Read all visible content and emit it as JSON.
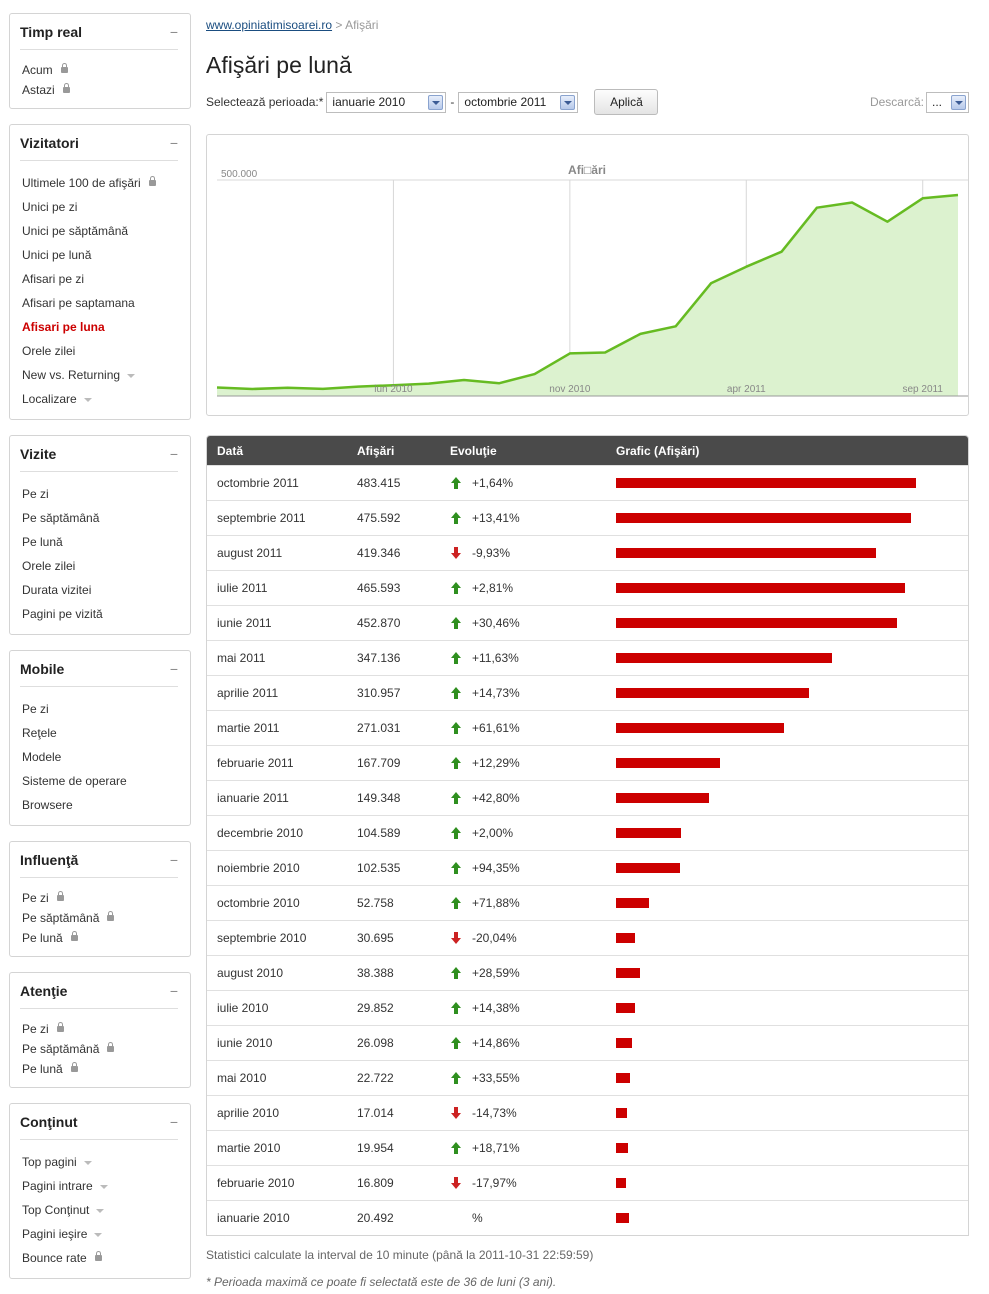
{
  "sidebar": [
    {
      "title": "Timp real",
      "items": [
        {
          "label": "Acum",
          "lock": true
        },
        {
          "label": "Astazi",
          "lock": true
        }
      ],
      "small": true
    },
    {
      "title": "Vizitatori",
      "items": [
        {
          "label": "Ultimele 100 de afişări",
          "lock": true
        },
        {
          "label": "Unici pe zi"
        },
        {
          "label": "Unici pe săptămână"
        },
        {
          "label": "Unici pe lună"
        },
        {
          "label": "Afisari pe zi"
        },
        {
          "label": "Afisari pe saptamana"
        },
        {
          "label": "Afisari pe luna",
          "active": true
        },
        {
          "label": "Orele zilei"
        },
        {
          "label": "New vs. Returning",
          "caret": true
        },
        {
          "label": "Localizare",
          "caret": true
        }
      ]
    },
    {
      "title": "Vizite",
      "items": [
        {
          "label": "Pe zi"
        },
        {
          "label": "Pe săptămână"
        },
        {
          "label": "Pe lună"
        },
        {
          "label": "Orele zilei"
        },
        {
          "label": "Durata vizitei"
        },
        {
          "label": "Pagini pe vizită"
        }
      ]
    },
    {
      "title": "Mobile",
      "items": [
        {
          "label": "Pe zi"
        },
        {
          "label": "Reţele"
        },
        {
          "label": "Modele"
        },
        {
          "label": "Sisteme de operare"
        },
        {
          "label": "Browsere"
        }
      ]
    },
    {
      "title": "Influenţă",
      "small": true,
      "items": [
        {
          "label": "Pe zi",
          "lock": true
        },
        {
          "label": "Pe săptămână",
          "lock": true
        },
        {
          "label": "Pe lună",
          "lock": true
        }
      ]
    },
    {
      "title": "Atenţie",
      "small": true,
      "items": [
        {
          "label": "Pe zi",
          "lock": true
        },
        {
          "label": "Pe săptămână",
          "lock": true
        },
        {
          "label": "Pe lună",
          "lock": true
        }
      ]
    },
    {
      "title": "Conţinut",
      "items": [
        {
          "label": "Top pagini",
          "caret": true
        },
        {
          "label": "Pagini intrare",
          "caret": true
        },
        {
          "label": "Top Conţinut",
          "caret": true
        },
        {
          "label": "Pagini ieşire",
          "caret": true
        },
        {
          "label": "Bounce rate",
          "lock": true
        }
      ]
    }
  ],
  "breadcrumb": {
    "site": "www.opiniatimisoarei.ro",
    "separator": ">",
    "current": "Afişări"
  },
  "page_title": "Afişări pe lună",
  "toolbar": {
    "period_label": "Selectează perioada:*",
    "from": "ianuarie 2010",
    "separator": "-",
    "to": "octombrie 2011",
    "apply": "Aplică",
    "download_label": "Descarcă:",
    "download_value": "..."
  },
  "chart_data": {
    "type": "area",
    "title": "Afi□ări",
    "ytick": "500.000",
    "ylim": [
      0,
      530000
    ],
    "x_tick_labels": [
      {
        "label": "iun 2010",
        "index": 5
      },
      {
        "label": "nov 2010",
        "index": 10
      },
      {
        "label": "apr 2011",
        "index": 15
      },
      {
        "label": "sep 2011",
        "index": 20
      }
    ],
    "x": [
      "ianuarie 2010",
      "februarie 2010",
      "martie 2010",
      "aprilie 2010",
      "mai 2010",
      "iunie 2010",
      "iulie 2010",
      "august 2010",
      "septembrie 2010",
      "octombrie 2010",
      "noiembrie 2010",
      "decembrie 2010",
      "ianuarie 2011",
      "februarie 2011",
      "martie 2011",
      "aprilie 2011",
      "mai 2011",
      "iunie 2011",
      "iulie 2011",
      "august 2011",
      "septembrie 2011",
      "octombrie 2011"
    ],
    "values": [
      20492,
      16809,
      19954,
      17014,
      22722,
      26098,
      29852,
      38388,
      30695,
      52758,
      102535,
      104589,
      149348,
      167709,
      271031,
      310957,
      347136,
      452870,
      465593,
      419346,
      475592,
      483415
    ],
    "line_color": "#66bb22",
    "fill_color": "#dcf2cf",
    "grid": true
  },
  "table": {
    "headers": [
      "Dată",
      "Afişări",
      "Evoluţie",
      "Grafic (Afişări)"
    ],
    "bar_color": "#cc0000",
    "bar_max": 483415,
    "rows": [
      {
        "date": "octombrie 2011",
        "views": "483.415",
        "value": 483415,
        "change": "+1,64%",
        "dir": "up"
      },
      {
        "date": "septembrie 2011",
        "views": "475.592",
        "value": 475592,
        "change": "+13,41%",
        "dir": "up"
      },
      {
        "date": "august 2011",
        "views": "419.346",
        "value": 419346,
        "change": "-9,93%",
        "dir": "down"
      },
      {
        "date": "iulie 2011",
        "views": "465.593",
        "value": 465593,
        "change": "+2,81%",
        "dir": "up"
      },
      {
        "date": "iunie 2011",
        "views": "452.870",
        "value": 452870,
        "change": "+30,46%",
        "dir": "up"
      },
      {
        "date": "mai 2011",
        "views": "347.136",
        "value": 347136,
        "change": "+11,63%",
        "dir": "up"
      },
      {
        "date": "aprilie 2011",
        "views": "310.957",
        "value": 310957,
        "change": "+14,73%",
        "dir": "up"
      },
      {
        "date": "martie 2011",
        "views": "271.031",
        "value": 271031,
        "change": "+61,61%",
        "dir": "up"
      },
      {
        "date": "februarie 2011",
        "views": "167.709",
        "value": 167709,
        "change": "+12,29%",
        "dir": "up"
      },
      {
        "date": "ianuarie 2011",
        "views": "149.348",
        "value": 149348,
        "change": "+42,80%",
        "dir": "up"
      },
      {
        "date": "decembrie 2010",
        "views": "104.589",
        "value": 104589,
        "change": "+2,00%",
        "dir": "up"
      },
      {
        "date": "noiembrie 2010",
        "views": "102.535",
        "value": 102535,
        "change": "+94,35%",
        "dir": "up"
      },
      {
        "date": "octombrie 2010",
        "views": "52.758",
        "value": 52758,
        "change": "+71,88%",
        "dir": "up"
      },
      {
        "date": "septembrie 2010",
        "views": "30.695",
        "value": 30695,
        "change": "-20,04%",
        "dir": "down"
      },
      {
        "date": "august 2010",
        "views": "38.388",
        "value": 38388,
        "change": "+28,59%",
        "dir": "up"
      },
      {
        "date": "iulie 2010",
        "views": "29.852",
        "value": 29852,
        "change": "+14,38%",
        "dir": "up"
      },
      {
        "date": "iunie 2010",
        "views": "26.098",
        "value": 26098,
        "change": "+14,86%",
        "dir": "up"
      },
      {
        "date": "mai 2010",
        "views": "22.722",
        "value": 22722,
        "change": "+33,55%",
        "dir": "up"
      },
      {
        "date": "aprilie 2010",
        "views": "17.014",
        "value": 17014,
        "change": "-14,73%",
        "dir": "down"
      },
      {
        "date": "martie 2010",
        "views": "19.954",
        "value": 19954,
        "change": "+18,71%",
        "dir": "up"
      },
      {
        "date": "februarie 2010",
        "views": "16.809",
        "value": 16809,
        "change": "-17,97%",
        "dir": "down"
      },
      {
        "date": "ianuarie 2010",
        "views": "20.492",
        "value": 20492,
        "change": "%",
        "dir": "none"
      }
    ]
  },
  "footer": {
    "note": "Statistici calculate la interval de 10 minute (până la 2011-10-31 22:59:59)",
    "note2": "* Perioada maximă ce poate fi selectată este de 36 de luni (3 ani)."
  }
}
